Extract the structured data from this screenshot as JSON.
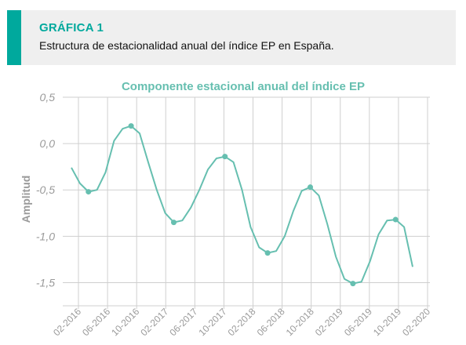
{
  "header": {
    "label": "GRÁFICA 1",
    "subtitle": "Estructura de estacionalidad anual del índice EP en España."
  },
  "colors": {
    "accent": "#00a99d",
    "line": "#66bfb0",
    "grid": "#cfcfcf",
    "axis_text": "#9a9a9a"
  },
  "chart_data": {
    "type": "line",
    "title": "Componente estacional anual del índice EP",
    "xlabel": "",
    "ylabel": "Amplitud",
    "ylim": [
      -1.75,
      0.5
    ],
    "yticks": [
      0.5,
      0.0,
      -0.5,
      -1.0,
      -1.5
    ],
    "ytick_labels": [
      "0,5",
      "0,0",
      "-0,5",
      "-1,0",
      "-1,5"
    ],
    "xticks": [
      "02-2016",
      "06-2016",
      "10-2016",
      "02-2017",
      "06-2017",
      "10-2017",
      "02-2018",
      "06-2018",
      "10-2018",
      "02-2019",
      "06-2019",
      "10-2019",
      "02-2020"
    ],
    "grid": true,
    "series": [
      {
        "values": [
          -0.26,
          -0.43,
          -0.52,
          -0.5,
          -0.31,
          0.03,
          0.16,
          0.19,
          0.11,
          -0.2,
          -0.5,
          -0.75,
          -0.85,
          -0.83,
          -0.69,
          -0.5,
          -0.28,
          -0.16,
          -0.14,
          -0.2,
          -0.5,
          -0.9,
          -1.12,
          -1.18,
          -1.16,
          -1.0,
          -0.73,
          -0.51,
          -0.47,
          -0.56,
          -0.87,
          -1.22,
          -1.46,
          -1.51,
          -1.49,
          -1.27,
          -0.98,
          -0.83,
          -0.82,
          -0.9,
          -1.33
        ],
        "markers": [
          2,
          7,
          12,
          18,
          23,
          28,
          33,
          38
        ]
      }
    ]
  }
}
